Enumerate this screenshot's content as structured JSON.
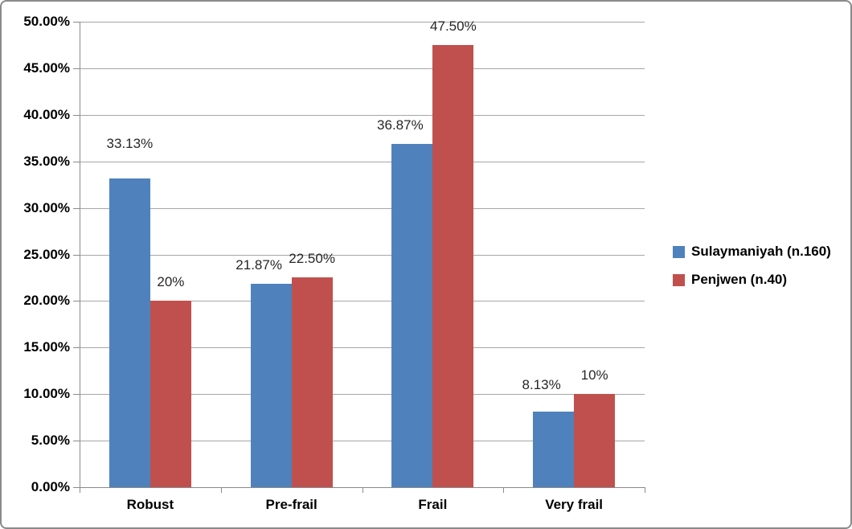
{
  "chart_data": {
    "type": "bar",
    "title": "",
    "xlabel": "",
    "ylabel": "",
    "categories": [
      "Robust",
      "Pre-frail",
      "Frail",
      "Very frail"
    ],
    "series": [
      {
        "name": "Sulaymaniyah (n.160)",
        "color": "#4f81bd",
        "values": [
          33.13,
          21.87,
          36.87,
          8.13
        ],
        "labels": [
          "33.13%",
          "21.87%",
          "36.87%",
          "8.13%"
        ]
      },
      {
        "name": "Penjwen (n.40)",
        "color": "#c0504d",
        "values": [
          20,
          22.5,
          47.5,
          10
        ],
        "labels": [
          "20%",
          "22.50%",
          "47.50%",
          "10%"
        ]
      }
    ],
    "ylim": [
      0,
      50
    ],
    "y_tick_step": 5,
    "y_tick_labels": [
      "0.00%",
      "5.00%",
      "10.00%",
      "15.00%",
      "20.00%",
      "25.00%",
      "30.00%",
      "35.00%",
      "40.00%",
      "45.00%",
      "50.00%"
    ],
    "grid": true,
    "legend_position": "right"
  },
  "colors": {
    "axis": "#8a8a8a",
    "gridline": "#a6a6a6",
    "frame_border": "#8a8a8a",
    "background": "#ffffff",
    "series_1": "#4f81bd",
    "series_2": "#c0504d"
  }
}
